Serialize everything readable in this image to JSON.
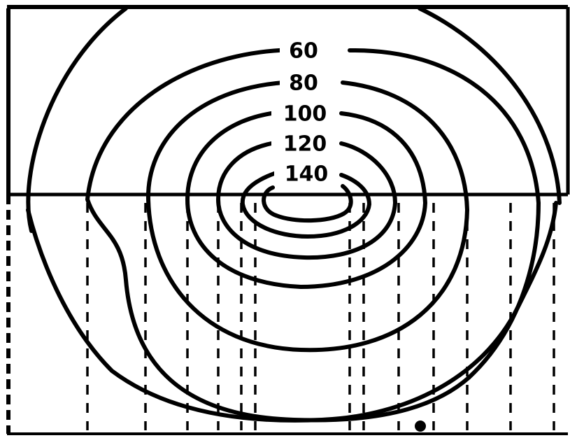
{
  "contours": {
    "labels": [
      "60",
      "80",
      "100",
      "120",
      "140"
    ]
  },
  "colors": {
    "line": "#000000",
    "background": "#ffffff"
  }
}
